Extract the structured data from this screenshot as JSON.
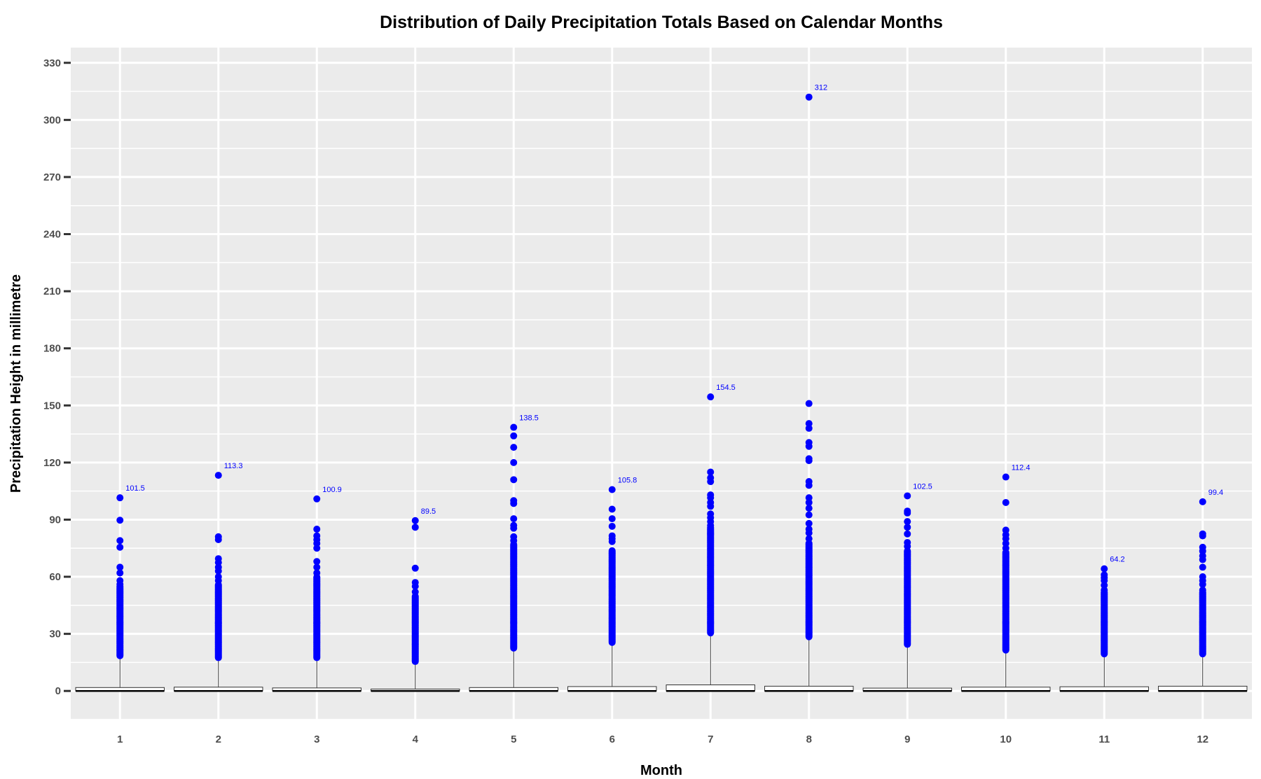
{
  "chart_data": {
    "type": "box",
    "title": "Distribution of Daily Precipitation Totals Based on Calendar Months",
    "xlabel": "Month",
    "ylabel": "Precipitation Height in millimetre",
    "categories": [
      "1",
      "2",
      "3",
      "4",
      "5",
      "6",
      "7",
      "8",
      "9",
      "10",
      "11",
      "12"
    ],
    "ylim": [
      -15,
      338
    ],
    "yticks": [
      0,
      30,
      60,
      90,
      120,
      150,
      180,
      210,
      240,
      270,
      300,
      330
    ],
    "grid": true,
    "legend": "none",
    "colors": {
      "panel_background": "#ebebeb",
      "grid": "#ffffff",
      "outlier": "#0000ff",
      "box_fill": "#ffffff",
      "box_stroke": "#333333",
      "label": "#0000ff"
    },
    "boxes": [
      {
        "month": "1",
        "q1": 0,
        "median": 0,
        "q3": 1.8,
        "whisker_high": 18.5,
        "max": 101.5,
        "max_label": "101.5",
        "outliers_sparse": [
          89.7,
          79.0,
          75.5,
          65.0,
          62.0,
          58.0,
          56.0
        ],
        "outlier_band": [
          18.5,
          55
        ]
      },
      {
        "month": "2",
        "q1": 0,
        "median": 0,
        "q3": 2.0,
        "whisker_high": 17.5,
        "max": 113.3,
        "max_label": "113.3",
        "outliers_sparse": [
          81.0,
          79.5,
          69.5,
          67.5,
          65.0,
          63.0,
          60.0,
          58.0
        ],
        "outlier_band": [
          17.5,
          56
        ]
      },
      {
        "month": "3",
        "q1": 0,
        "median": 0,
        "q3": 1.6,
        "whisker_high": 17.5,
        "max": 100.9,
        "max_label": "100.9",
        "outliers_sparse": [
          85.0,
          81.5,
          79.5,
          77.5,
          75.0,
          68.0,
          65.0,
          62.0
        ],
        "outlier_band": [
          17.5,
          60
        ]
      },
      {
        "month": "4",
        "q1": 0,
        "median": 0,
        "q3": 1.0,
        "whisker_high": 15.5,
        "max": 89.5,
        "max_label": "89.5",
        "outliers_sparse": [
          86.0,
          64.5,
          57.0,
          55.0,
          52.0
        ],
        "outlier_band": [
          15.5,
          50
        ]
      },
      {
        "month": "5",
        "q1": 0,
        "median": 0,
        "q3": 1.8,
        "whisker_high": 22.5,
        "max": 138.5,
        "max_label": "138.5",
        "outliers_sparse": [
          134.0,
          128.0,
          120.0,
          111.0,
          100.0,
          98.5,
          90.5,
          87.0,
          85.5,
          81.0,
          79.0
        ],
        "outlier_band": [
          22.5,
          77
        ]
      },
      {
        "month": "6",
        "q1": 0,
        "median": 0,
        "q3": 2.3,
        "whisker_high": 25.5,
        "max": 105.8,
        "max_label": "105.8",
        "outliers_sparse": [
          95.5,
          90.5,
          86.5,
          81.5,
          80.0,
          78.5
        ],
        "outlier_band": [
          25.5,
          74
        ]
      },
      {
        "month": "7",
        "q1": 0,
        "median": 0,
        "q3": 3.2,
        "whisker_high": 30.5,
        "max": 154.5,
        "max_label": "154.5",
        "outliers_sparse": [
          115.0,
          112.0,
          110.0,
          103.0,
          101.5,
          99.0,
          97.0,
          93.0,
          91.0,
          89.0,
          87.0
        ],
        "outlier_band": [
          30.5,
          86
        ]
      },
      {
        "month": "8",
        "q1": 0,
        "median": 0,
        "q3": 2.5,
        "whisker_high": 28.5,
        "max": 312,
        "max_label": "312",
        "outliers_sparse": [
          151.0,
          140.5,
          138.0,
          130.5,
          128.5,
          122.0,
          121.0,
          110.0,
          108.0,
          101.5,
          99.0,
          96.0,
          92.5,
          88.0,
          85.0,
          83.0,
          80.0
        ],
        "outlier_band": [
          28.5,
          78
        ]
      },
      {
        "month": "9",
        "q1": 0,
        "median": 0,
        "q3": 1.5,
        "whisker_high": 24.5,
        "max": 102.5,
        "max_label": "102.5",
        "outliers_sparse": [
          94.5,
          93.5,
          89.0,
          86.0,
          82.5,
          78.0,
          76.0
        ],
        "outlier_band": [
          24.5,
          74
        ]
      },
      {
        "month": "10",
        "q1": 0,
        "median": 0,
        "q3": 2.0,
        "whisker_high": 21.5,
        "max": 112.4,
        "max_label": "112.4",
        "outliers_sparse": [
          99.0,
          84.5,
          82.0,
          80.0,
          77.5,
          75.0
        ],
        "outlier_band": [
          21.5,
          73
        ]
      },
      {
        "month": "11",
        "q1": 0,
        "median": 0,
        "q3": 2.2,
        "whisker_high": 19.5,
        "max": 64.2,
        "max_label": "64.2",
        "outliers_sparse": [
          61.0,
          59.5,
          58.0,
          55.5,
          53.0
        ],
        "outlier_band": [
          19.5,
          52
        ]
      },
      {
        "month": "12",
        "q1": 0,
        "median": 0,
        "q3": 2.5,
        "whisker_high": 19.5,
        "max": 99.4,
        "max_label": "99.4",
        "outliers_sparse": [
          82.5,
          81.5,
          75.5,
          73.5,
          71.0,
          69.0,
          65.0,
          60.0,
          58.0,
          56.0,
          53.0
        ],
        "outlier_band": [
          19.5,
          52
        ]
      }
    ]
  }
}
